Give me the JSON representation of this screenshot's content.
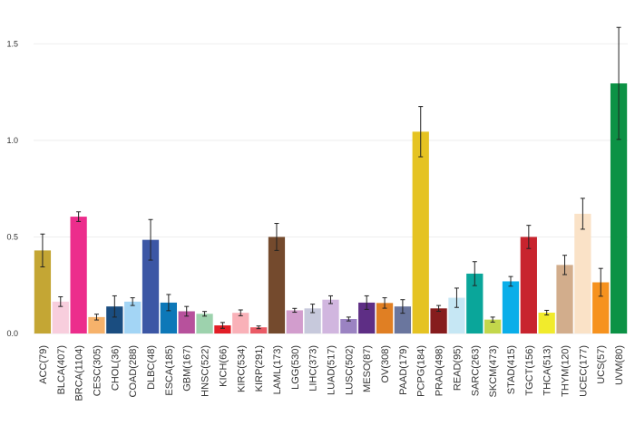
{
  "chart_data": {
    "type": "bar",
    "title": "",
    "xlabel": "",
    "ylabel": "",
    "ylim": [
      0,
      1.68
    ],
    "yticks": [
      0.0,
      0.5,
      1.0,
      1.5
    ],
    "ytick_labels": [
      "0.0",
      "0.5",
      "1.0",
      "1.5"
    ],
    "grid": true,
    "error_bars": true,
    "categories": [
      "ACC(79)",
      "BLCA(407)",
      "BRCA(1104)",
      "CESC(305)",
      "CHOL(36)",
      "COAD(288)",
      "DLBC(48)",
      "ESCA(185)",
      "GBM(167)",
      "HNSC(522)",
      "KICH(66)",
      "KIRC(534)",
      "KIRP(291)",
      "LAML(173)",
      "LGG(530)",
      "LIHC(373)",
      "LUAD(517)",
      "LUSC(502)",
      "MESO(87)",
      "OV(308)",
      "PAAD(179)",
      "PCPG(184)",
      "PRAD(498)",
      "READ(95)",
      "SARC(263)",
      "SKCM(473)",
      "STAD(415)",
      "TGCT(156)",
      "THCA(513)",
      "THYM(120)",
      "UCEC(177)",
      "UCS(57)",
      "UVM(80)"
    ],
    "values": [
      0.43,
      0.165,
      0.605,
      0.085,
      0.14,
      0.165,
      0.485,
      0.16,
      0.115,
      0.102,
      0.042,
      0.107,
      0.032,
      0.5,
      0.12,
      0.13,
      0.175,
      0.075,
      0.16,
      0.158,
      0.14,
      1.045,
      0.13,
      0.185,
      0.31,
      0.072,
      0.27,
      0.5,
      0.108,
      0.355,
      0.62,
      0.265,
      1.295
    ],
    "errors": [
      0.085,
      0.025,
      0.025,
      0.015,
      0.055,
      0.02,
      0.105,
      0.042,
      0.025,
      0.012,
      0.015,
      0.015,
      0.007,
      0.07,
      0.01,
      0.022,
      0.02,
      0.01,
      0.035,
      0.027,
      0.035,
      0.13,
      0.015,
      0.05,
      0.062,
      0.013,
      0.025,
      0.06,
      0.012,
      0.05,
      0.08,
      0.072,
      0.29
    ],
    "colors": [
      "#c4a634",
      "#f8cedd",
      "#ec2d8c",
      "#f6b26b",
      "#1a4d80",
      "#a3d5f5",
      "#3c57a5",
      "#0d78b8",
      "#b7519c",
      "#9dd2ad",
      "#e21e26",
      "#f9b1b8",
      "#ea5a65",
      "#744a2d",
      "#d29dcd",
      "#c7c9dc",
      "#d1b6df",
      "#9b83c2",
      "#5e2e85",
      "#e07f23",
      "#6a769e",
      "#e5c322",
      "#861c1d",
      "#c6e7f4",
      "#0aa69a",
      "#c3d74b",
      "#0aaee9",
      "#c8242e",
      "#f1eb2c",
      "#d2ad8c",
      "#fae2c7",
      "#f6921e",
      "#0c9245"
    ]
  }
}
